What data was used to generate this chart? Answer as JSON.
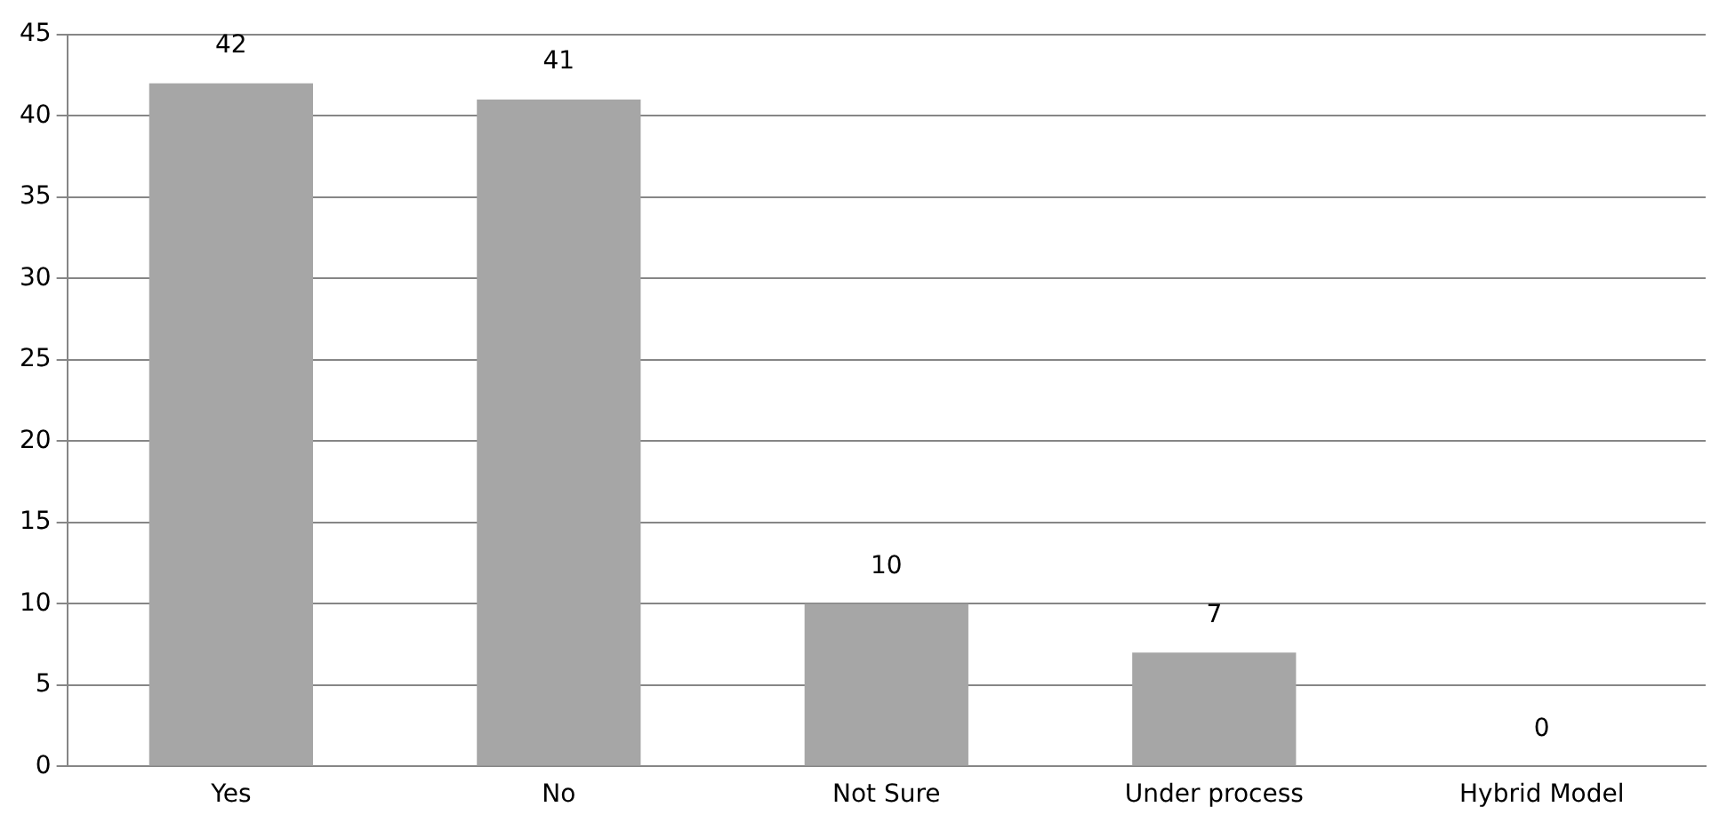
{
  "chart_data": {
    "type": "bar",
    "categories": [
      "Yes",
      "No",
      "Not Sure",
      "Under process",
      "Hybrid Model"
    ],
    "values": [
      42,
      41,
      10,
      7,
      0
    ],
    "color": "#a6a6a6",
    "ylim": [
      0,
      45
    ],
    "yticks": [
      0,
      5,
      10,
      15,
      20,
      25,
      30,
      35,
      40,
      45
    ],
    "grid": "y",
    "legend": false,
    "data_labels": true
  }
}
